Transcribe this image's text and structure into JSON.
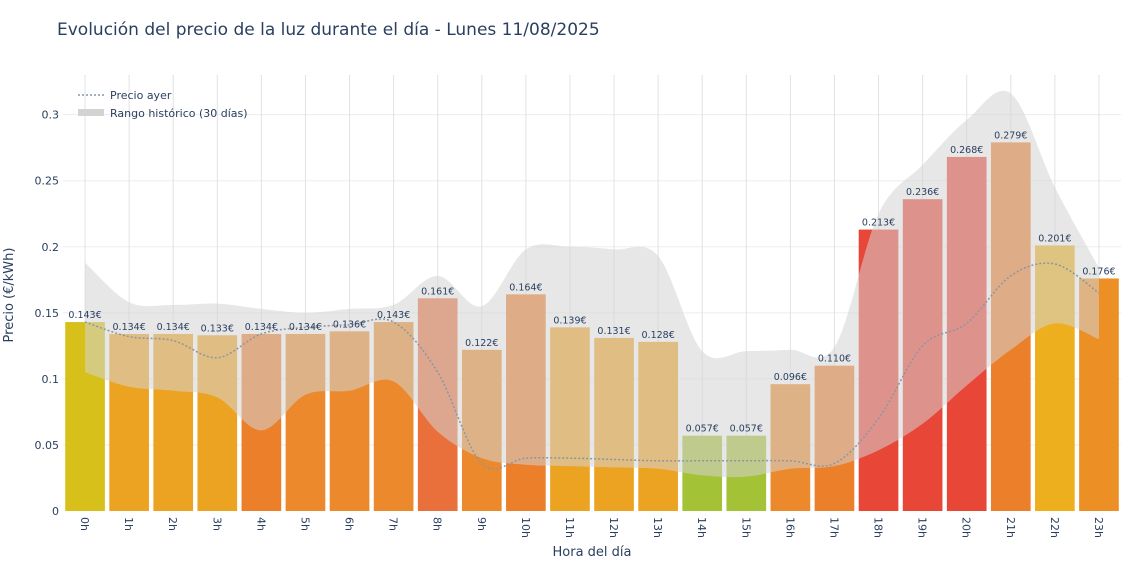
{
  "chart_data": {
    "type": "bar",
    "title": "Evolución del precio de la luz durante el día - Lunes 11/08/2025",
    "xlabel": "Hora del día",
    "ylabel": "Precio (€/kWh)",
    "ylim": [
      0,
      0.33
    ],
    "yticks": [
      "0",
      "0.05",
      "0.1",
      "0.15",
      "0.2",
      "0.25",
      "0.3"
    ],
    "ytick_values": [
      0,
      0.05,
      0.1,
      0.15,
      0.2,
      0.25,
      0.3
    ],
    "categories": [
      "0h",
      "1h",
      "2h",
      "3h",
      "4h",
      "5h",
      "6h",
      "7h",
      "8h",
      "9h",
      "10h",
      "11h",
      "12h",
      "13h",
      "14h",
      "15h",
      "16h",
      "17h",
      "18h",
      "19h",
      "20h",
      "21h",
      "22h",
      "23h"
    ],
    "values": [
      0.143,
      0.134,
      0.134,
      0.133,
      0.134,
      0.134,
      0.136,
      0.143,
      0.161,
      0.122,
      0.164,
      0.139,
      0.131,
      0.128,
      0.057,
      0.057,
      0.096,
      0.11,
      0.213,
      0.236,
      0.268,
      0.279,
      0.201,
      0.176
    ],
    "value_labels": [
      "0.143€",
      "0.134€",
      "0.134€",
      "0.133€",
      "0.134€",
      "0.134€",
      "0.136€",
      "0.143€",
      "0.161€",
      "0.122€",
      "0.164€",
      "0.139€",
      "0.131€",
      "0.128€",
      "0.057€",
      "0.057€",
      "0.096€",
      "0.110€",
      "0.213€",
      "0.236€",
      "0.268€",
      "0.279€",
      "0.201€",
      "0.176€"
    ],
    "bar_colors": [
      "#d8c01a",
      "#eda322",
      "#eda322",
      "#eda322",
      "#ec7f2a",
      "#ec892c",
      "#ec892c",
      "#ec892c",
      "#e9703a",
      "#ec892c",
      "#ec7f2a",
      "#eda322",
      "#eda322",
      "#eda322",
      "#a4c236",
      "#a4c236",
      "#ec892c",
      "#ec7f2a",
      "#e84636",
      "#e84636",
      "#e84636",
      "#ec7f2a",
      "#eeaf1e",
      "#ec8f25"
    ],
    "series": [
      {
        "name": "Precio ayer",
        "style": "dotted",
        "color": "#8c96a0",
        "values": [
          0.143,
          0.132,
          0.129,
          0.116,
          0.134,
          0.139,
          0.141,
          0.143,
          0.105,
          0.036,
          0.04,
          0.04,
          0.039,
          0.038,
          0.038,
          0.038,
          0.038,
          0.036,
          0.07,
          0.125,
          0.142,
          0.178,
          0.187,
          0.165
        ]
      },
      {
        "name": "Rango histórico (30 días)",
        "style": "band",
        "color": "#d3d3d3",
        "upper": [
          0.188,
          0.158,
          0.156,
          0.157,
          0.153,
          0.15,
          0.153,
          0.156,
          0.178,
          0.155,
          0.198,
          0.2,
          0.198,
          0.193,
          0.121,
          0.121,
          0.122,
          0.124,
          0.225,
          0.262,
          0.296,
          0.316,
          0.245,
          0.184
        ],
        "lower": [
          0.105,
          0.094,
          0.091,
          0.086,
          0.061,
          0.088,
          0.091,
          0.098,
          0.06,
          0.04,
          0.035,
          0.034,
          0.033,
          0.032,
          0.027,
          0.026,
          0.032,
          0.034,
          0.046,
          0.066,
          0.095,
          0.122,
          0.142,
          0.13
        ]
      }
    ],
    "grid": true,
    "legend_position": "top-left"
  }
}
